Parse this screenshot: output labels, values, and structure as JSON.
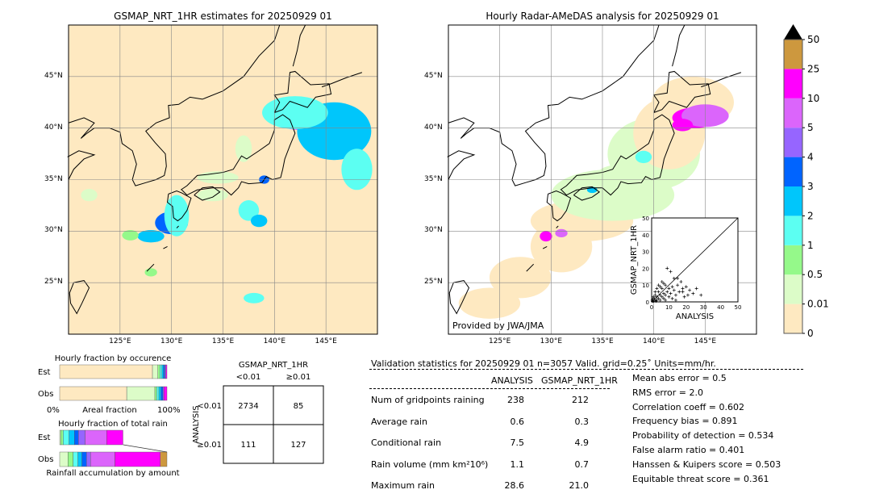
{
  "left_map": {
    "title": "GSMAP_NRT_1HR estimates for 20250929 01"
  },
  "right_map": {
    "title": "Hourly Radar-AMeDAS analysis for 20250929 01",
    "credit": "Provided by JWA/JMA"
  },
  "lon_ticks": [
    "125°E",
    "130°E",
    "135°E",
    "140°E",
    "145°E"
  ],
  "lat_ticks": [
    "45°N",
    "40°N",
    "35°N",
    "30°N",
    "25°N"
  ],
  "colorbar": {
    "labels": [
      "0",
      "0.01",
      "0.5",
      "1",
      "2",
      "3",
      "4",
      "5",
      "10",
      "25",
      "50"
    ],
    "colors": [
      "#fee9c1",
      "#dcfcc8",
      "#95f98a",
      "#5cfff2",
      "#00c6fb",
      "#0064ff",
      "#9665ff",
      "#db65fb",
      "#ff00fe",
      "#cd983e"
    ],
    "extend_color": "#000000"
  },
  "chart_data": [
    {
      "type": "bar",
      "title": "Hourly fraction by occurence",
      "xlabel": "Areal fraction",
      "xlim_labels": [
        "0%",
        "100%"
      ],
      "categories": [
        "Est",
        "Obs"
      ],
      "series_percent": {
        "Est": [
          86.5,
          5,
          2,
          1.75,
          1.5,
          1.25,
          1,
          1
        ],
        "Obs": [
          62.5,
          26.25,
          1.75,
          2,
          2,
          1.75,
          1,
          2.75
        ]
      }
    },
    {
      "type": "bar",
      "title": "Hourly fraction of total rain",
      "xlabel": "Rainfall accumulation by amount",
      "categories": [
        "Est",
        "Obs"
      ],
      "series_percent_of_obs_total": {
        "Est": [
          1,
          2.25,
          5.5,
          5,
          3.75,
          6.25,
          20,
          15.25,
          0
        ],
        "Obs": [
          7.75,
          4.75,
          4.5,
          3.75,
          4.25,
          3.75,
          22.75,
          42.25,
          6.25
        ]
      }
    },
    {
      "type": "scatter",
      "xlabel": "ANALYSIS",
      "ylabel": "GSMAP_NRT_1HR",
      "xlim": [
        0,
        50
      ],
      "ylim": [
        0,
        50
      ],
      "ticks": [
        "0",
        "10",
        "20",
        "30",
        "40",
        "50"
      ],
      "points": [
        [
          0.5,
          0.3
        ],
        [
          1,
          0.5
        ],
        [
          1.5,
          2
        ],
        [
          2,
          1
        ],
        [
          2,
          4
        ],
        [
          3,
          1
        ],
        [
          3,
          3
        ],
        [
          4,
          2
        ],
        [
          4,
          6
        ],
        [
          5,
          1
        ],
        [
          5,
          4
        ],
        [
          6,
          3
        ],
        [
          6,
          8
        ],
        [
          7,
          2
        ],
        [
          7,
          5
        ],
        [
          8,
          4
        ],
        [
          8,
          10
        ],
        [
          9,
          6
        ],
        [
          10,
          3
        ],
        [
          10,
          8
        ],
        [
          11,
          5
        ],
        [
          12,
          9
        ],
        [
          13,
          7
        ],
        [
          14,
          4
        ],
        [
          15,
          10
        ],
        [
          16,
          6
        ],
        [
          17,
          12
        ],
        [
          18,
          8
        ],
        [
          19,
          3
        ],
        [
          20,
          9
        ],
        [
          22,
          7
        ],
        [
          24,
          5
        ],
        [
          26,
          8
        ],
        [
          28.6,
          4
        ],
        [
          9,
          20
        ],
        [
          11,
          18
        ],
        [
          13,
          14
        ],
        [
          6,
          12
        ],
        [
          4,
          10
        ],
        [
          2,
          6
        ],
        [
          1,
          3
        ],
        [
          3,
          8
        ],
        [
          5,
          9
        ],
        [
          7,
          11
        ],
        [
          15,
          14
        ],
        [
          18,
          6
        ],
        [
          21,
          4
        ],
        [
          12,
          2
        ],
        [
          8,
          1
        ],
        [
          14,
          1
        ],
        [
          0.3,
          1
        ],
        [
          0.8,
          2
        ],
        [
          2.5,
          0.5
        ]
      ]
    },
    {
      "type": "table",
      "title": "GSMAP_NRT_1HR",
      "col_labels": [
        "<0.01",
        "≥0.01"
      ],
      "row_title": "ANALYSIS",
      "row_labels": [
        "<0.01",
        "≥0.01"
      ],
      "cells": [
        [
          "2734",
          "85"
        ],
        [
          "111",
          "127"
        ]
      ]
    }
  ],
  "stats": {
    "header": "Validation statistics for 20250929 01  n=3057 Valid. grid=0.25˚ Units=mm/hr.",
    "col_analysis": "ANALYSIS",
    "col_gsmap": "GSMAP_NRT_1HR",
    "rows": [
      {
        "label": "Num of gridpoints raining",
        "a": "238",
        "g": "212"
      },
      {
        "label": "Average rain",
        "a": "0.6",
        "g": "0.3"
      },
      {
        "label": "Conditional rain",
        "a": "7.5",
        "g": "4.9"
      },
      {
        "label": "Rain volume (mm km²10⁶)",
        "a": "1.1",
        "g": "0.7"
      },
      {
        "label": "Maximum rain",
        "a": "28.6",
        "g": "21.0"
      }
    ],
    "scores": [
      "Mean abs error =    0.5",
      "RMS error =    2.0",
      "Correlation coeff =  0.602",
      "Frequency bias =  0.891",
      "Probability of detection =  0.534",
      "False alarm ratio =  0.401",
      "Hanssen & Kuipers score =  0.503",
      "Equitable threat score =  0.361"
    ]
  }
}
